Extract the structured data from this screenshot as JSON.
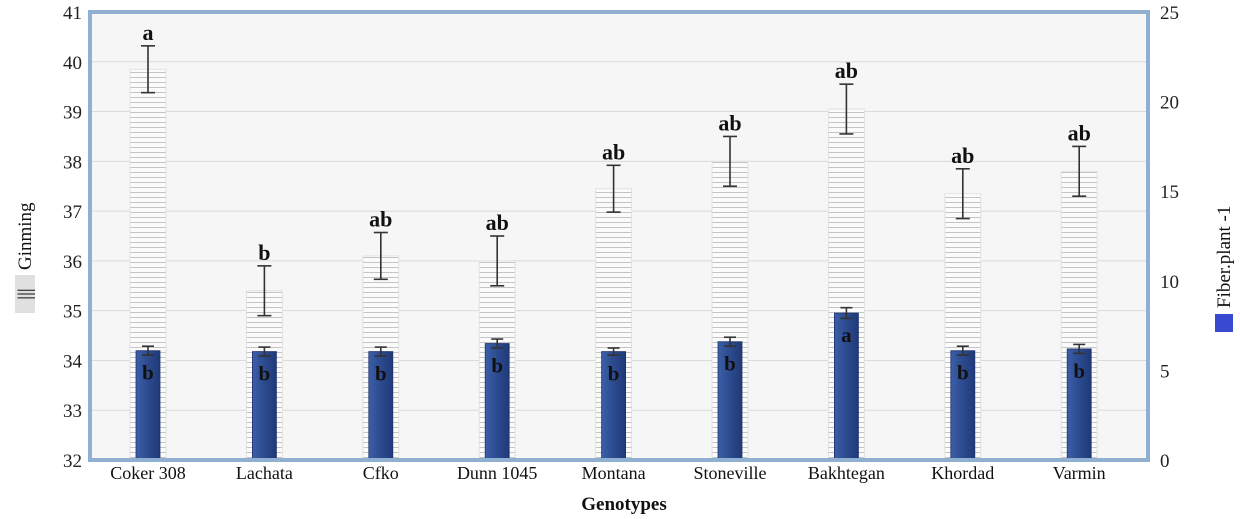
{
  "chart_data": {
    "type": "bar",
    "xlabel": "Genotypes",
    "categories": [
      "Coker 308",
      "Lachata",
      "Cfko",
      "Dunn 1045",
      "Montana",
      "Stoneville",
      "Bakhtegan",
      "Khordad",
      "Varmin"
    ],
    "left_axis": {
      "label": "Ginming",
      "legend_symbol": "|||",
      "ylim": [
        32,
        41
      ],
      "ticks": [
        32,
        33,
        34,
        35,
        36,
        37,
        38,
        39,
        40,
        41
      ]
    },
    "right_axis": {
      "label": "Fiber.plant -1",
      "ylim": [
        0,
        25
      ],
      "ticks": [
        0,
        5,
        10,
        15,
        20,
        25
      ]
    },
    "series": [
      {
        "name": "Ginming",
        "axis": "left",
        "color": "#f4f4f4",
        "pattern": "horizontal-lines",
        "values": [
          39.85,
          35.4,
          36.1,
          36.0,
          37.45,
          38.0,
          39.05,
          37.35,
          37.8
        ],
        "errors": [
          0.47,
          0.5,
          0.47,
          0.5,
          0.47,
          0.5,
          0.5,
          0.5,
          0.5
        ],
        "letters": [
          "a",
          "b",
          "ab",
          "ab",
          "ab",
          "ab",
          "ab",
          "ab",
          "ab"
        ]
      },
      {
        "name": "Fiber.plant -1",
        "axis": "right",
        "color": "#2e4d93",
        "values": [
          6.1,
          6.05,
          6.05,
          6.5,
          6.05,
          6.6,
          8.2,
          6.1,
          6.2
        ],
        "errors": [
          0.25,
          0.25,
          0.25,
          0.25,
          0.2,
          0.25,
          0.3,
          0.25,
          0.25
        ],
        "letters": [
          "b",
          "b",
          "b",
          "b",
          "b",
          "b",
          "a",
          "b",
          "b"
        ]
      }
    ],
    "grid": true
  }
}
